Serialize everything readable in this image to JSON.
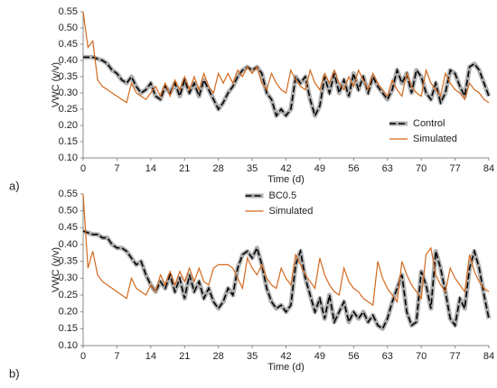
{
  "chart_data": [
    {
      "type": "line",
      "panel_label": "a)",
      "xlabel": "Time (d)",
      "ylabel": "VWC (v/v)",
      "x": [
        0,
        1,
        2,
        3,
        4,
        5,
        6,
        7,
        8,
        9,
        10,
        11,
        12,
        13,
        14,
        15,
        16,
        17,
        18,
        19,
        20,
        21,
        22,
        23,
        24,
        25,
        26,
        27,
        28,
        29,
        30,
        31,
        32,
        33,
        34,
        35,
        36,
        37,
        38,
        39,
        40,
        41,
        42,
        43,
        44,
        45,
        46,
        47,
        48,
        49,
        50,
        51,
        52,
        53,
        54,
        55,
        56,
        57,
        58,
        59,
        60,
        61,
        62,
        63,
        64,
        65,
        66,
        67,
        68,
        69,
        70,
        71,
        72,
        73,
        74,
        75,
        76,
        77,
        78,
        79,
        80,
        81,
        82,
        83,
        84
      ],
      "series": [
        {
          "name": "Control",
          "color": "#000000",
          "dashed": true,
          "band_color": "#b0b0b0",
          "values": [
            0.41,
            0.41,
            0.41,
            0.405,
            0.4,
            0.39,
            0.37,
            0.36,
            0.34,
            0.33,
            0.35,
            0.32,
            0.3,
            0.31,
            0.33,
            0.29,
            0.28,
            0.32,
            0.3,
            0.33,
            0.29,
            0.34,
            0.3,
            0.33,
            0.29,
            0.34,
            0.31,
            0.28,
            0.25,
            0.27,
            0.3,
            0.32,
            0.35,
            0.37,
            0.38,
            0.37,
            0.38,
            0.36,
            0.3,
            0.28,
            0.23,
            0.25,
            0.23,
            0.25,
            0.35,
            0.33,
            0.35,
            0.28,
            0.23,
            0.26,
            0.35,
            0.3,
            0.36,
            0.3,
            0.34,
            0.29,
            0.36,
            0.31,
            0.35,
            0.3,
            0.35,
            0.32,
            0.3,
            0.28,
            0.31,
            0.37,
            0.33,
            0.36,
            0.3,
            0.37,
            0.35,
            0.3,
            0.28,
            0.33,
            0.27,
            0.3,
            0.37,
            0.36,
            0.32,
            0.29,
            0.38,
            0.39,
            0.37,
            0.33,
            0.29
          ]
        },
        {
          "name": "Simulated",
          "color": "#d2691e",
          "dashed": false,
          "values": [
            0.55,
            0.44,
            0.46,
            0.34,
            0.32,
            0.31,
            0.3,
            0.29,
            0.28,
            0.27,
            0.33,
            0.3,
            0.29,
            0.28,
            0.3,
            0.32,
            0.29,
            0.33,
            0.29,
            0.34,
            0.31,
            0.35,
            0.31,
            0.35,
            0.31,
            0.36,
            0.32,
            0.3,
            0.36,
            0.33,
            0.36,
            0.33,
            0.37,
            0.35,
            0.38,
            0.36,
            0.38,
            0.33,
            0.31,
            0.36,
            0.33,
            0.31,
            0.3,
            0.37,
            0.34,
            0.32,
            0.31,
            0.37,
            0.33,
            0.31,
            0.36,
            0.33,
            0.37,
            0.33,
            0.31,
            0.35,
            0.32,
            0.37,
            0.34,
            0.31,
            0.36,
            0.33,
            0.31,
            0.29,
            0.34,
            0.31,
            0.29,
            0.36,
            0.32,
            0.3,
            0.29,
            0.37,
            0.33,
            0.31,
            0.29,
            0.36,
            0.33,
            0.31,
            0.3,
            0.28,
            0.33,
            0.31,
            0.3,
            0.28,
            0.27
          ]
        }
      ],
      "xlim": [
        0,
        84
      ],
      "xticks": [
        0,
        7,
        14,
        21,
        28,
        35,
        42,
        49,
        56,
        63,
        70,
        77,
        84
      ],
      "ylim": [
        0.1,
        0.55
      ],
      "yticks": [
        {
          "value": 0.1,
          "label": "0.10"
        },
        0.15,
        {
          "value": 0.2,
          "label": "0.20"
        },
        0.25,
        {
          "value": 0.3,
          "label": "0.30"
        },
        0.35,
        {
          "value": 0.4,
          "label": "0.40"
        },
        0.45,
        {
          "value": 0.5,
          "label": "0.50"
        },
        0.55
      ],
      "legend": "lower right"
    },
    {
      "type": "line",
      "panel_label": "b)",
      "xlabel": "Time (d)",
      "ylabel": "VWC (v/v)",
      "x": [
        0,
        1,
        2,
        3,
        4,
        5,
        6,
        7,
        8,
        9,
        10,
        11,
        12,
        13,
        14,
        15,
        16,
        17,
        18,
        19,
        20,
        21,
        22,
        23,
        24,
        25,
        26,
        27,
        28,
        29,
        30,
        31,
        32,
        33,
        34,
        35,
        36,
        37,
        38,
        39,
        40,
        41,
        42,
        43,
        44,
        45,
        46,
        47,
        48,
        49,
        50,
        51,
        52,
        53,
        54,
        55,
        56,
        57,
        58,
        59,
        60,
        61,
        62,
        63,
        64,
        65,
        66,
        67,
        68,
        69,
        70,
        71,
        72,
        73,
        74,
        75,
        76,
        77,
        78,
        79,
        80,
        81,
        82,
        83,
        84
      ],
      "series": [
        {
          "name": "BC0.5",
          "color": "#000000",
          "dashed": true,
          "band_color": "#b0b0b0",
          "values": [
            0.44,
            0.435,
            0.43,
            0.43,
            0.42,
            0.42,
            0.4,
            0.39,
            0.39,
            0.38,
            0.36,
            0.34,
            0.35,
            0.31,
            0.28,
            0.26,
            0.29,
            0.27,
            0.31,
            0.26,
            0.3,
            0.24,
            0.31,
            0.26,
            0.29,
            0.24,
            0.27,
            0.23,
            0.21,
            0.23,
            0.27,
            0.25,
            0.33,
            0.37,
            0.38,
            0.36,
            0.39,
            0.34,
            0.27,
            0.23,
            0.21,
            0.22,
            0.2,
            0.22,
            0.34,
            0.38,
            0.3,
            0.25,
            0.2,
            0.24,
            0.18,
            0.25,
            0.17,
            0.2,
            0.23,
            0.17,
            0.2,
            0.18,
            0.2,
            0.17,
            0.19,
            0.16,
            0.15,
            0.18,
            0.23,
            0.27,
            0.31,
            0.2,
            0.16,
            0.17,
            0.32,
            0.28,
            0.21,
            0.38,
            0.33,
            0.26,
            0.18,
            0.16,
            0.24,
            0.21,
            0.33,
            0.38,
            0.33,
            0.25,
            0.18
          ]
        },
        {
          "name": "Simulated",
          "color": "#d2691e",
          "dashed": false,
          "values": [
            0.55,
            0.33,
            0.38,
            0.31,
            0.29,
            0.28,
            0.27,
            0.26,
            0.25,
            0.24,
            0.3,
            0.27,
            0.26,
            0.25,
            0.28,
            0.26,
            0.31,
            0.28,
            0.32,
            0.28,
            0.32,
            0.29,
            0.33,
            0.29,
            0.33,
            0.29,
            0.28,
            0.33,
            0.34,
            0.34,
            0.34,
            0.33,
            0.3,
            0.27,
            0.36,
            0.33,
            0.31,
            0.34,
            0.3,
            0.28,
            0.27,
            0.33,
            0.3,
            0.28,
            0.37,
            0.34,
            0.31,
            0.29,
            0.27,
            0.36,
            0.31,
            0.28,
            0.26,
            0.25,
            0.33,
            0.29,
            0.27,
            0.26,
            0.24,
            0.23,
            0.22,
            0.35,
            0.3,
            0.27,
            0.25,
            0.23,
            0.35,
            0.31,
            0.28,
            0.26,
            0.24,
            0.37,
            0.39,
            0.31,
            0.28,
            0.26,
            0.33,
            0.3,
            0.28,
            0.26,
            0.37,
            0.32,
            0.29,
            0.27,
            0.26
          ]
        }
      ],
      "xlim": [
        0,
        84
      ],
      "xticks": [
        0,
        7,
        14,
        21,
        28,
        35,
        42,
        49,
        56,
        63,
        70,
        77,
        84
      ],
      "ylim": [
        0.1,
        0.55
      ],
      "yticks": [
        {
          "value": 0.1,
          "label": "0.10"
        },
        0.15,
        {
          "value": 0.2,
          "label": "0.20"
        },
        0.25,
        {
          "value": 0.3,
          "label": "0.30"
        },
        0.35,
        {
          "value": 0.4,
          "label": "0.40"
        },
        0.45,
        {
          "value": 0.5,
          "label": "0.50"
        },
        0.55
      ],
      "legend": "upper center"
    }
  ]
}
